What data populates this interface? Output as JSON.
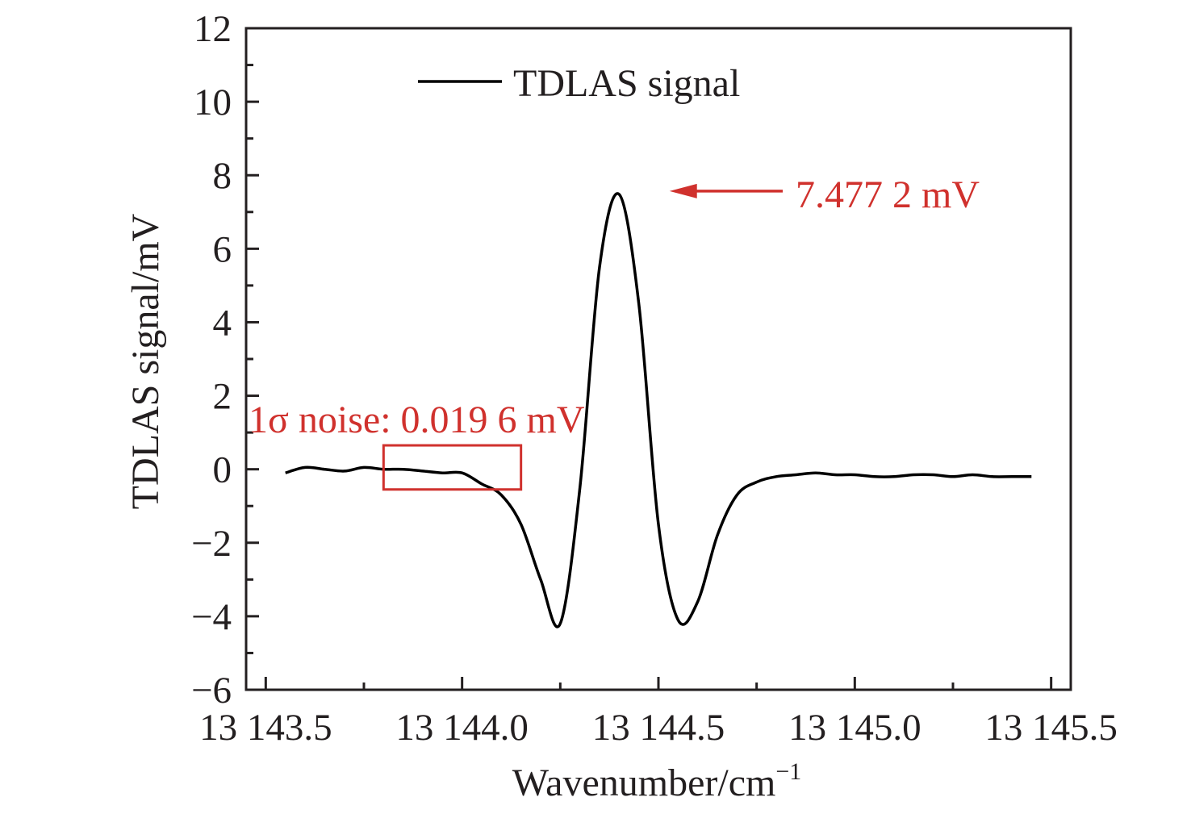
{
  "chart_data": {
    "type": "line",
    "xlabel": "Wavenumber/cm",
    "xlabel_superscript": "−1",
    "ylabel": "TDLAS signal/mV",
    "xlim": [
      13143.45,
      13145.55
    ],
    "ylim": [
      -6,
      12
    ],
    "x_ticks": [
      13143.5,
      13144.0,
      13144.5,
      13145.0,
      13145.5
    ],
    "x_tick_labels": [
      "13 143.5",
      "13 144.0",
      "13 144.5",
      "13 145.0",
      "13 145.5"
    ],
    "y_ticks": [
      -6,
      -4,
      -2,
      0,
      2,
      4,
      6,
      8,
      10,
      12
    ],
    "y_tick_labels": [
      "−6",
      "−4",
      "−2",
      "0",
      "2",
      "4",
      "6",
      "8",
      "10",
      "12"
    ],
    "grid": false,
    "legend_position": "top-left",
    "colors": {
      "line": "#000000",
      "annotation": "#d0312d",
      "axis": "#231f20"
    },
    "series": [
      {
        "name": "TDLAS signal",
        "x": [
          13143.55,
          13143.6,
          13143.65,
          13143.7,
          13143.75,
          13143.8,
          13143.85,
          13143.9,
          13143.95,
          13144.0,
          13144.05,
          13144.1,
          13144.15,
          13144.2,
          13144.25,
          13144.3,
          13144.35,
          13144.4,
          13144.45,
          13144.5,
          13144.55,
          13144.6,
          13144.65,
          13144.7,
          13144.75,
          13144.8,
          13144.85,
          13144.9,
          13144.95,
          13145.0,
          13145.05,
          13145.1,
          13145.15,
          13145.2,
          13145.25,
          13145.3,
          13145.35,
          13145.4,
          13145.45
        ],
        "values": [
          -0.1,
          0.05,
          0.0,
          -0.05,
          0.05,
          0.0,
          0.0,
          -0.05,
          -0.1,
          -0.1,
          -0.4,
          -0.7,
          -1.5,
          -3.0,
          -4.2,
          -0.5,
          5.5,
          7.48,
          4.5,
          -1.5,
          -4.1,
          -3.6,
          -1.8,
          -0.7,
          -0.35,
          -0.2,
          -0.15,
          -0.1,
          -0.15,
          -0.15,
          -0.2,
          -0.2,
          -0.15,
          -0.15,
          -0.2,
          -0.15,
          -0.2,
          -0.2,
          -0.2
        ]
      }
    ],
    "annotations": [
      {
        "id": "peak",
        "text": "7.477 2 mV",
        "x": 13144.52,
        "y": 7.48
      },
      {
        "id": "noise",
        "text": "1σ noise: 0.019 6 mV",
        "x_range": [
          13143.8,
          13144.15
        ],
        "y_range": [
          -0.55,
          0.65
        ]
      }
    ]
  }
}
